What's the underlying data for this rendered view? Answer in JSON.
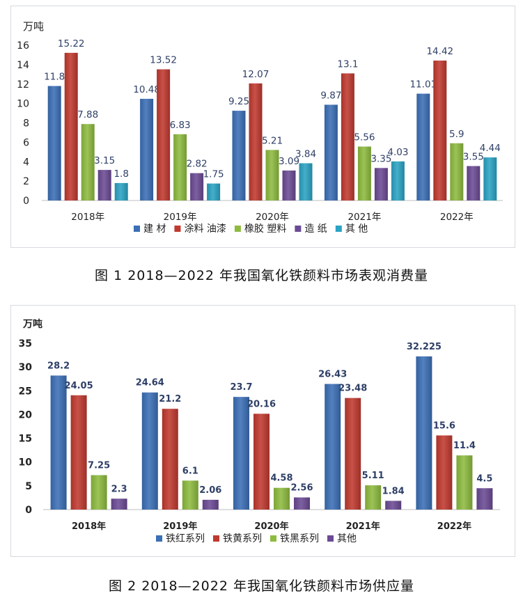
{
  "chart_data": [
    {
      "type": "bar",
      "title": "图 1  2018—2022 年我国氧化铁颜料市场表观消费量",
      "ylabel": "万吨",
      "ylim": [
        0,
        16
      ],
      "yticks": [
        0,
        2,
        4,
        6,
        8,
        10,
        12,
        14,
        16
      ],
      "grid": false,
      "legend_position": "bottom",
      "categories": [
        "2018年",
        "2019年",
        "2020年",
        "2021年",
        "2022年"
      ],
      "series": [
        {
          "name": "建 材",
          "color": "#3b6fb6",
          "values": [
            11.8,
            10.48,
            9.25,
            9.87,
            11.01
          ],
          "labels": [
            "11.8",
            "10.48",
            "9.25",
            "9.87",
            "11.01"
          ]
        },
        {
          "name": "涂料 油漆",
          "color": "#c0392f",
          "values": [
            15.22,
            13.52,
            12.07,
            13.1,
            14.42
          ],
          "labels": [
            "15.22",
            "13.52",
            "12.07",
            "13.1",
            "14.42"
          ]
        },
        {
          "name": "橡胶 塑料",
          "color": "#8dbb3f",
          "values": [
            7.88,
            6.83,
            5.21,
            5.56,
            5.9
          ],
          "labels": [
            "7.88",
            "6.83",
            "5.21",
            "5.56",
            "5.9"
          ]
        },
        {
          "name": "造 纸",
          "color": "#6b4a94",
          "values": [
            3.15,
            2.82,
            3.09,
            3.35,
            3.55
          ],
          "labels": [
            "3.15",
            "2.82",
            "3.09",
            "3.35",
            "3.55"
          ]
        },
        {
          "name": "其 他",
          "color": "#2aa3c4",
          "values": [
            1.8,
            1.75,
            3.84,
            4.03,
            4.44
          ],
          "labels": [
            "1.8",
            "1.75",
            "3.84",
            "4.03",
            "4.44"
          ]
        }
      ]
    },
    {
      "type": "bar",
      "title": "图 2  2018—2022 年我国氧化铁颜料市场供应量",
      "ylabel": "万吨",
      "ylim": [
        0,
        35
      ],
      "yticks": [
        0,
        5,
        10,
        15,
        20,
        25,
        30,
        35
      ],
      "grid": false,
      "legend_position": "bottom",
      "categories": [
        "2018年",
        "2019年",
        "2020年",
        "2021年",
        "2022年"
      ],
      "series": [
        {
          "name": "铁红系列",
          "color": "#3b6fb6",
          "values": [
            28.2,
            24.64,
            23.7,
            26.43,
            32.225
          ],
          "labels": [
            "28.2",
            "24.64",
            "23.7",
            "26.43",
            "32.225"
          ]
        },
        {
          "name": "铁黄系列",
          "color": "#c0392f",
          "values": [
            24.05,
            21.2,
            20.16,
            23.48,
            15.6
          ],
          "labels": [
            "24.05",
            "21.2",
            "20.16",
            "23.48",
            "15.6"
          ]
        },
        {
          "name": "铁黑系列",
          "color": "#8dbb3f",
          "values": [
            7.25,
            6.1,
            4.58,
            5.11,
            11.4
          ],
          "labels": [
            "7.25",
            "6.1",
            "4.58",
            "5.11",
            "11.4"
          ]
        },
        {
          "name": "其他",
          "color": "#6b4a94",
          "values": [
            2.3,
            2.06,
            2.56,
            1.84,
            4.5
          ],
          "labels": [
            "2.3",
            "2.06",
            "2.56",
            "1.84",
            "4.5"
          ]
        }
      ]
    }
  ]
}
